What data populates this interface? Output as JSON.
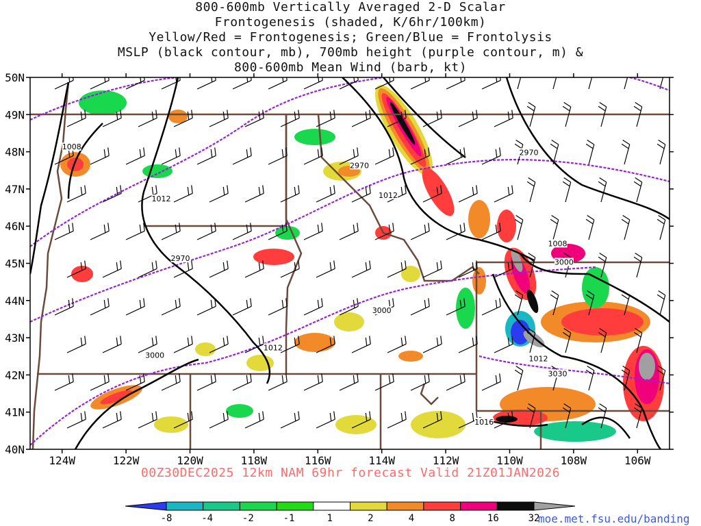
{
  "title_lines": [
    "800-600mb Vertically Averaged 2-D Scalar",
    "Frontogenesis (shaded, K/6hr/100km)",
    "Yellow/Red = Frontogenesis;  Green/Blue = Frontolysis",
    "MSLP (black contour, mb), 700mb height (purple contour, m) &",
    "800-600mb Mean Wind (barb, kt)"
  ],
  "footer": "00Z30DEC2025 12km NAM 69hr forecast Valid 21Z01JAN2026",
  "credit": "moe.met.fsu.edu/banding",
  "axes": {
    "lat_labels": [
      "50N",
      "49N",
      "48N",
      "47N",
      "46N",
      "45N",
      "44N",
      "43N",
      "42N",
      "41N",
      "40N"
    ],
    "lon_labels": [
      "124W",
      "122W",
      "120W",
      "118W",
      "116W",
      "114W",
      "112W",
      "110W",
      "108W",
      "106W"
    ],
    "lat_range": [
      40,
      50
    ],
    "lon_range": [
      -125,
      -105
    ]
  },
  "colorbar": {
    "labels": [
      "-8",
      "-4",
      "-2",
      "-1",
      "1",
      "2",
      "4",
      "8",
      "16",
      "32"
    ],
    "colors": [
      "#2b3cf0",
      "#1ab7c3",
      "#19c98a",
      "#1ad84d",
      "#21dc12",
      "#ffffff",
      "#e2d93b",
      "#f28a2a",
      "#ff3d3d",
      "#f0007a",
      "#0c0c0c",
      "#a0a0a0"
    ]
  },
  "colors": {
    "mslp": "#000000",
    "height": "#9a20d8",
    "borders": "#6b4a3a",
    "barb": "#000000"
  },
  "pressure_labels": [
    {
      "text": "1008",
      "lon": -123.7,
      "lat": 48.1
    },
    {
      "text": "1012",
      "lon": -120.9,
      "lat": 46.7
    },
    {
      "text": "1012",
      "lon": -113.8,
      "lat": 46.8
    },
    {
      "text": "1012",
      "lon": -117.4,
      "lat": 42.7
    },
    {
      "text": "1008",
      "lon": -108.5,
      "lat": 45.5
    },
    {
      "text": "1012",
      "lon": -109.1,
      "lat": 42.4
    },
    {
      "text": "1016",
      "lon": -110.8,
      "lat": 40.7
    }
  ],
  "height_labels": [
    {
      "text": "2970",
      "lon": -109.4,
      "lat": 47.95
    },
    {
      "text": "2970",
      "lon": -114.7,
      "lat": 47.6
    },
    {
      "text": "2970",
      "lon": -120.3,
      "lat": 45.1
    },
    {
      "text": "3000",
      "lon": -108.3,
      "lat": 45.0
    },
    {
      "text": "3000",
      "lon": -114.0,
      "lat": 43.7
    },
    {
      "text": "3000",
      "lon": -121.1,
      "lat": 42.5
    },
    {
      "text": "3030",
      "lon": -108.5,
      "lat": 42.0
    }
  ]
}
